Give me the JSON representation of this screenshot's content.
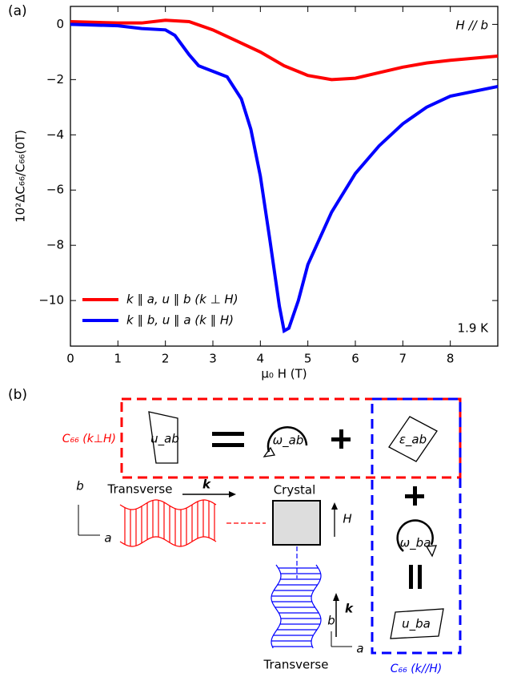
{
  "chart_data": {
    "type": "line",
    "panel_label": "(a)",
    "annotations": [
      "H // b",
      "1.9 K"
    ],
    "xlabel": "μ₀ H (T)",
    "ylabel": "10²ΔC₆₆/C₆₆(0T)",
    "xlim": [
      0,
      9
    ],
    "ylim": [
      -11.65,
      0.65
    ],
    "xticks": [
      0,
      1,
      2,
      3,
      4,
      5,
      6,
      7,
      8
    ],
    "yticks": [
      0,
      {
        "value": -2,
        "label": "−2"
      },
      {
        "value": -4,
        "label": "−4"
      },
      {
        "value": -6,
        "label": "−6"
      },
      {
        "value": -8,
        "label": "−8"
      },
      {
        "value": -10,
        "label": "−10"
      }
    ],
    "legend": "lower left",
    "series": [
      {
        "name": "k ∥ a, u ∥ b (k ⊥ H)",
        "color": "#ff0000",
        "x": [
          0,
          1,
          1.5,
          2,
          2.5,
          3,
          3.5,
          4,
          4.5,
          5,
          5.5,
          6,
          6.5,
          7,
          7.5,
          8,
          9
        ],
        "values": [
          0.1,
          0.05,
          0.05,
          0.15,
          0.1,
          -0.2,
          -0.6,
          -1.0,
          -1.5,
          -1.85,
          -2.0,
          -1.95,
          -1.75,
          -1.55,
          -1.4,
          -1.3,
          -1.15
        ]
      },
      {
        "name": "k ∥ b, u ∥ a (k ∥ H)",
        "color": "#0000ff",
        "x": [
          0,
          1,
          1.5,
          2,
          2.2,
          2.5,
          2.7,
          3,
          3.3,
          3.6,
          3.8,
          4,
          4.2,
          4.4,
          4.5,
          4.6,
          4.8,
          5,
          5.5,
          6,
          6.5,
          7,
          7.5,
          8,
          9
        ],
        "values": [
          0,
          -0.05,
          -0.15,
          -0.2,
          -0.4,
          -1.1,
          -1.5,
          -1.7,
          -1.9,
          -2.7,
          -3.8,
          -5.5,
          -7.8,
          -10.2,
          -11.1,
          -11.0,
          -10.0,
          -8.7,
          -6.8,
          -5.4,
          -4.4,
          -3.6,
          -3.0,
          -2.6,
          -2.25
        ]
      }
    ]
  },
  "diagram": {
    "panel_label": "(b)",
    "c66_perp": "C₆₆ (k⊥H)",
    "u_ab": "u_ab",
    "omega_ab": "ω_ab",
    "eps_ab": "ε_ab",
    "transverse_top": "Transverse",
    "k_top": "k",
    "crystal": "Crystal",
    "h": "H",
    "b_left": "b",
    "a_left": "a",
    "omega_ba": "ω_ba",
    "u_ba": "u_ba",
    "k_bottom": "k",
    "b_bottom": "b",
    "a_bottom": "a",
    "transverse_bottom": "Transverse",
    "c66_par": "C₆₆ (k//H)"
  }
}
